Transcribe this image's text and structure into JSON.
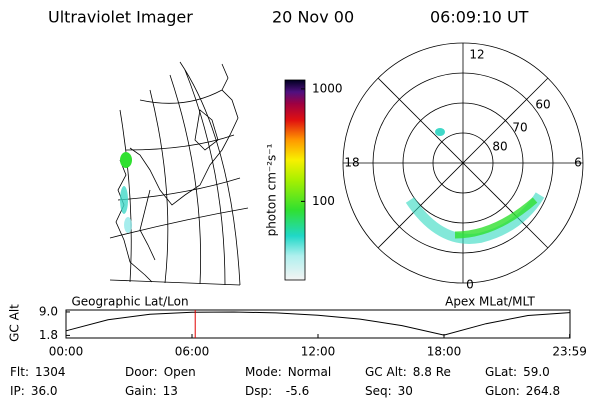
{
  "header": {
    "instrument": "Ultraviolet Imager",
    "date": "20 Nov 00",
    "time": "06:09:10 UT"
  },
  "colorbar": {
    "label": "photon cm⁻²s⁻¹",
    "scale": "log",
    "clim": [
      20,
      1200
    ],
    "ticks": [
      100,
      1000
    ]
  },
  "polar": {
    "label": "Apex MLat/MLT",
    "mlt_labels": [
      "12",
      "18",
      "6",
      "0"
    ],
    "lat_labels": [
      "60",
      "70",
      "80"
    ]
  },
  "geographic": {
    "label": "Geographic Lat/Lon"
  },
  "timeline": {
    "y_label": "GC Alt",
    "yticks": [
      {
        "value": 9.0,
        "label": "9.0"
      },
      {
        "value": 1.8,
        "label": "1.8"
      }
    ],
    "ylim": [
      1.0,
      9.6
    ],
    "xlim": [
      0,
      24
    ],
    "xticks": [
      {
        "value": 0,
        "label": "00:00"
      },
      {
        "value": 6,
        "label": "06:00"
      },
      {
        "value": 12,
        "label": "12:00"
      },
      {
        "value": 18,
        "label": "18:00"
      },
      {
        "value": 23.983,
        "label": "23:59"
      }
    ],
    "x": [
      0,
      2,
      4,
      6,
      8,
      10,
      12,
      14,
      16,
      18,
      20,
      22,
      23.983
    ],
    "values": [
      3.2,
      6.6,
      8.3,
      8.9,
      9.0,
      8.7,
      8.0,
      6.8,
      4.8,
      1.9,
      5.4,
      7.9,
      8.8
    ],
    "marker_time": 6.153,
    "marker_color": "#e00000"
  },
  "status": [
    [
      {
        "label": "Flt:",
        "value": "1304"
      },
      {
        "label": "Door:",
        "value": "Open"
      },
      {
        "label": "Mode:",
        "value": "Normal"
      },
      {
        "label": "GC Alt:",
        "value": "8.8 Re"
      },
      {
        "label": "GLat:",
        "value": "59.0"
      }
    ],
    [
      {
        "label": "IP:",
        "value": "36.0"
      },
      {
        "label": "Gain:",
        "value": "13"
      },
      {
        "label": "Dsp:",
        "value": "  -5.6"
      },
      {
        "label": "Seq:",
        "value": "30"
      },
      {
        "label": "GLon:",
        "value": "264.8"
      }
    ]
  ]
}
